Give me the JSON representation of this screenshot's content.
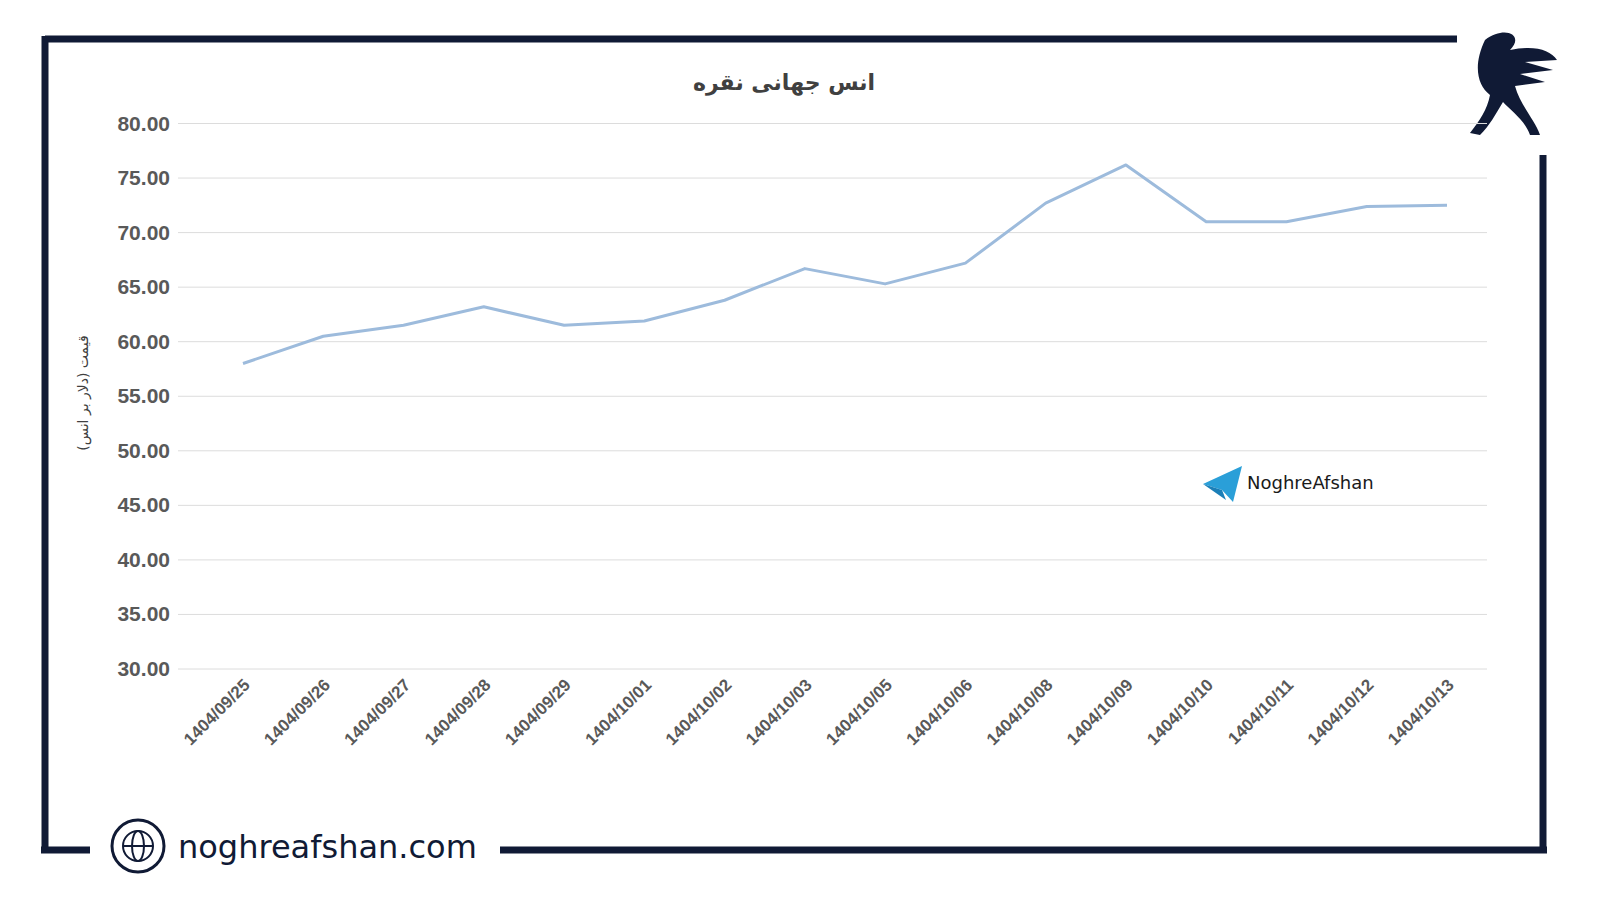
{
  "chart_data": {
    "type": "line",
    "title": "انس جهانی نقره",
    "y_label": "قیمت (دلار بر انس)",
    "categories": [
      "1404/09/25",
      "1404/09/26",
      "1404/09/27",
      "1404/09/28",
      "1404/09/29",
      "1404/10/01",
      "1404/10/02",
      "1404/10/03",
      "1404/10/05",
      "1404/10/06",
      "1404/10/08",
      "1404/10/09",
      "1404/10/10",
      "1404/10/11",
      "1404/10/12",
      "1404/10/13"
    ],
    "values": [
      58.0,
      60.5,
      61.5,
      63.2,
      61.5,
      61.9,
      63.8,
      66.7,
      65.3,
      67.2,
      72.7,
      76.2,
      71.0,
      71.0,
      72.4,
      72.5
    ],
    "color": "#9dbbdc",
    "ylim": [
      30,
      80
    ],
    "yticks": [
      {
        "value": 30,
        "label": "30.00"
      },
      {
        "value": 35,
        "label": "35.00"
      },
      {
        "value": 40,
        "label": "40.00"
      },
      {
        "value": 45,
        "label": "45.00"
      },
      {
        "value": 50,
        "label": "50.00"
      },
      {
        "value": 55,
        "label": "55.00"
      },
      {
        "value": 60,
        "label": "60.00"
      },
      {
        "value": 65,
        "label": "65.00"
      },
      {
        "value": 70,
        "label": "70.00"
      },
      {
        "value": 75,
        "label": "75.00"
      },
      {
        "value": 80,
        "label": "80.00"
      }
    ],
    "grid": true,
    "annotations": [
      "NoghreAfshan"
    ]
  },
  "footer": {
    "website": "noghreafshan.com"
  }
}
